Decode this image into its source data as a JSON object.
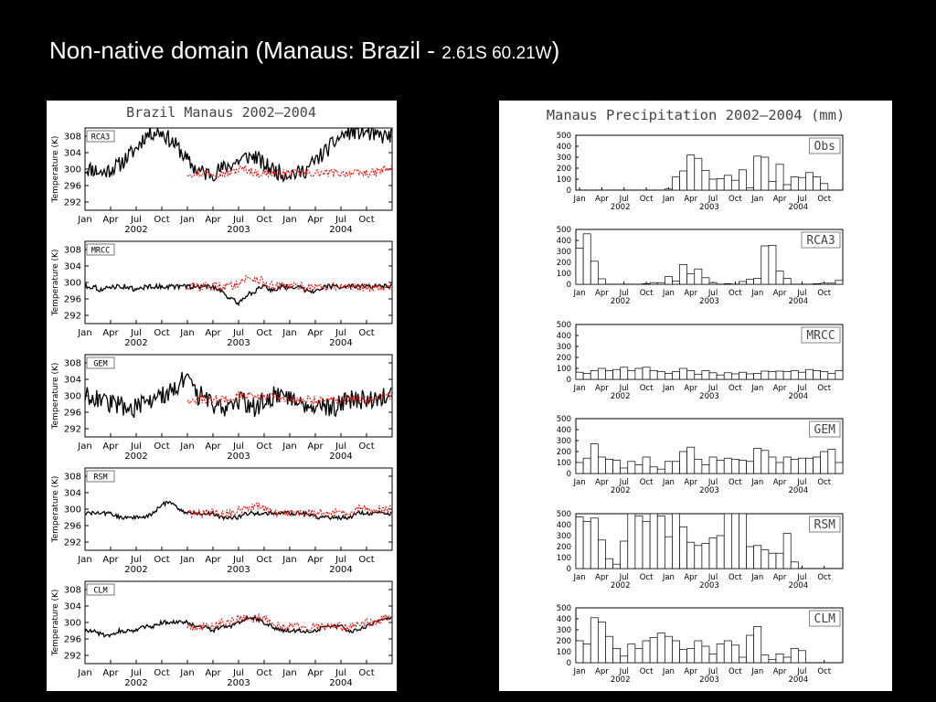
{
  "slide": {
    "title_main": "Non-native domain (Manaus: Brazil - ",
    "title_coords": "2.61S 60.21W",
    "title_close": ")"
  },
  "colors": {
    "background": "#000000",
    "model": "#000000",
    "obs_red": "#e8140f",
    "bar_edge": "#000000"
  },
  "temperature_figure": {
    "title": "Brazil Manaus 2002–2004",
    "ylabel": "Temperature (K)",
    "yticks": [
      292,
      296,
      300,
      304,
      308
    ],
    "xticks": [
      "Jan",
      "Apr",
      "Jul",
      "Oct",
      "Jan",
      "Apr",
      "Jul",
      "Oct",
      "Jan",
      "Apr",
      "Jul",
      "Oct"
    ],
    "years": [
      "2002",
      "2003",
      "2004"
    ]
  },
  "precip_figure": {
    "title": "Manaus Precipitation 2002–2004 (mm)",
    "yticks": [
      0,
      100,
      200,
      300,
      400,
      500
    ],
    "xticks": [
      "Jan",
      "Apr",
      "Jul",
      "Oct",
      "Jan",
      "Apr",
      "Jul",
      "Oct",
      "Jan",
      "Apr",
      "Jul",
      "Oct"
    ],
    "years": [
      "2002",
      "2003",
      "2004"
    ]
  },
  "chart_data": [
    {
      "type": "line",
      "title": "Brazil Manaus 2002–2004",
      "ylabel": "Temperature (K)",
      "ylim": [
        290,
        310
      ],
      "x_range": [
        "2002-01",
        "2004-12"
      ],
      "panels": [
        {
          "label": "RCA3",
          "model_profile": [
            300,
            300,
            299,
            300,
            301,
            303,
            305,
            308,
            309,
            309,
            307,
            305,
            302,
            300,
            299,
            299,
            300,
            301,
            302,
            303,
            303,
            301,
            300,
            299,
            299,
            299,
            300,
            302,
            304,
            306,
            308,
            309,
            309,
            309,
            308,
            308
          ],
          "model_noise": 2.0,
          "obs_profile": [
            null,
            null,
            null,
            null,
            null,
            null,
            null,
            null,
            null,
            null,
            null,
            null,
            299,
            299,
            299,
            299,
            299,
            299,
            300,
            300,
            299,
            299,
            299,
            299,
            299,
            299,
            299,
            299,
            299,
            299,
            299,
            299,
            299,
            299,
            299,
            300
          ],
          "obs_noise": 1.0
        },
        {
          "label": "MRCC",
          "model_profile": [
            299,
            299,
            298,
            299,
            299,
            299,
            298,
            299,
            299,
            299,
            299,
            299,
            299,
            299,
            299,
            299,
            298,
            296,
            295,
            297,
            298,
            299,
            298,
            299,
            299,
            299,
            298,
            298,
            299,
            299,
            299,
            299,
            299,
            299,
            299,
            299
          ],
          "model_noise": 0.6,
          "obs_profile": [
            null,
            null,
            null,
            null,
            null,
            null,
            null,
            null,
            null,
            null,
            null,
            null,
            299,
            299,
            299,
            299,
            299,
            299,
            300,
            301,
            301,
            300,
            299,
            299,
            299,
            299,
            299,
            299,
            299,
            299,
            299,
            299,
            299,
            299,
            299,
            299
          ],
          "obs_noise": 1.1
        },
        {
          "label": "GEM",
          "model_profile": [
            300,
            300,
            299,
            298,
            298,
            297,
            297,
            298,
            299,
            300,
            301,
            303,
            304,
            300,
            300,
            298,
            297,
            298,
            299,
            298,
            297,
            299,
            300,
            300,
            300,
            299,
            298,
            298,
            297,
            297,
            298,
            299,
            299,
            299,
            299,
            300
          ],
          "model_noise": 2.4,
          "obs_profile": [
            null,
            null,
            null,
            null,
            null,
            null,
            null,
            null,
            null,
            null,
            null,
            null,
            299,
            299,
            299,
            299,
            299,
            299,
            300,
            300,
            300,
            300,
            300,
            299,
            299,
            299,
            299,
            299,
            299,
            299,
            299,
            299,
            299,
            299,
            299,
            300
          ],
          "obs_noise": 1.0
        },
        {
          "label": "RSM",
          "model_profile": [
            299,
            299,
            299,
            299,
            298,
            298,
            298,
            298,
            299,
            301,
            302,
            300,
            299,
            299,
            299,
            299,
            298,
            298,
            298,
            299,
            299,
            299,
            299,
            299,
            299,
            299,
            299,
            298,
            298,
            298,
            298,
            298,
            299,
            299,
            299,
            299
          ],
          "model_noise": 0.5,
          "obs_profile": [
            null,
            null,
            null,
            null,
            null,
            null,
            null,
            null,
            null,
            null,
            null,
            null,
            299,
            299,
            299,
            299,
            299,
            299,
            300,
            300,
            301,
            300,
            299,
            299,
            299,
            299,
            299,
            299,
            299,
            299,
            299,
            299,
            300,
            300,
            300,
            300
          ],
          "obs_noise": 1.0
        },
        {
          "label": "CLM",
          "model_profile": [
            298,
            298,
            297,
            297,
            298,
            298,
            298,
            299,
            299,
            300,
            300,
            300,
            300,
            299,
            299,
            298,
            299,
            299,
            300,
            301,
            301,
            300,
            299,
            298,
            298,
            298,
            298,
            298,
            299,
            299,
            299,
            298,
            298,
            299,
            300,
            301
          ],
          "model_noise": 0.5,
          "obs_profile": [
            null,
            null,
            null,
            null,
            null,
            null,
            null,
            null,
            null,
            null,
            null,
            null,
            299,
            299,
            299,
            299,
            300,
            300,
            301,
            301,
            301,
            301,
            300,
            299,
            299,
            299,
            299,
            299,
            299,
            299,
            299,
            299,
            300,
            300,
            300,
            301
          ],
          "obs_noise": 1.0
        }
      ]
    },
    {
      "type": "bar",
      "title": "Manaus Precipitation 2002–2004 (mm)",
      "ylim": [
        0,
        500
      ],
      "x_range": [
        "2002-01",
        "2004-12"
      ],
      "series": [
        {
          "name": "Obs",
          "values": [
            0,
            0,
            0,
            0,
            0,
            0,
            0,
            0,
            0,
            0,
            0,
            0,
            10,
            120,
            175,
            320,
            290,
            180,
            100,
            105,
            135,
            90,
            185,
            20,
            310,
            300,
            80,
            235,
            50,
            120,
            115,
            160,
            120,
            60,
            null,
            null
          ]
        },
        {
          "name": "RCA3",
          "values": [
            330,
            460,
            210,
            50,
            0,
            0,
            0,
            0,
            0,
            5,
            15,
            15,
            70,
            30,
            180,
            95,
            140,
            60,
            15,
            0,
            5,
            0,
            25,
            45,
            55,
            350,
            355,
            120,
            55,
            0,
            0,
            0,
            5,
            10,
            10,
            35
          ]
        },
        {
          "name": "MRCC",
          "values": [
            65,
            55,
            80,
            100,
            80,
            90,
            110,
            80,
            100,
            110,
            80,
            70,
            55,
            70,
            100,
            80,
            45,
            80,
            60,
            40,
            60,
            50,
            65,
            50,
            55,
            75,
            70,
            75,
            70,
            80,
            65,
            90,
            80,
            70,
            55,
            80
          ]
        },
        {
          "name": "GEM",
          "values": [
            100,
            140,
            270,
            150,
            130,
            120,
            50,
            110,
            80,
            150,
            60,
            40,
            110,
            110,
            200,
            240,
            130,
            80,
            150,
            120,
            140,
            130,
            120,
            110,
            230,
            210,
            150,
            100,
            150,
            130,
            140,
            140,
            150,
            200,
            220,
            100
          ]
        },
        {
          "name": "RSM",
          "values": [
            470,
            430,
            460,
            260,
            90,
            40,
            250,
            510,
            480,
            430,
            510,
            480,
            290,
            510,
            380,
            240,
            210,
            230,
            280,
            300,
            500,
            510,
            510,
            200,
            210,
            170,
            140,
            140,
            320,
            60,
            null,
            null,
            null,
            null,
            null,
            null
          ]
        },
        {
          "name": "CLM",
          "values": [
            200,
            170,
            410,
            370,
            240,
            130,
            60,
            170,
            130,
            200,
            230,
            270,
            240,
            200,
            120,
            130,
            200,
            150,
            80,
            170,
            200,
            160,
            50,
            250,
            330,
            70,
            30,
            80,
            50,
            130,
            110,
            null,
            null,
            null,
            null,
            null
          ]
        }
      ]
    }
  ]
}
